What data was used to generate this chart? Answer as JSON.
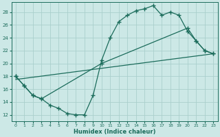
{
  "xlabel": "Humidex (Indice chaleur)",
  "xlim": [
    -0.5,
    23.5
  ],
  "ylim": [
    11,
    29.5
  ],
  "yticks": [
    12,
    14,
    16,
    18,
    20,
    22,
    24,
    26,
    28
  ],
  "xticks": [
    0,
    1,
    2,
    3,
    4,
    5,
    6,
    7,
    8,
    9,
    10,
    11,
    12,
    13,
    14,
    15,
    16,
    17,
    18,
    19,
    20,
    21,
    22,
    23
  ],
  "bg_color": "#cce8e6",
  "line_color": "#1a6b5a",
  "grid_color": "#aacfcc",
  "line1_x": [
    0,
    1,
    2,
    3,
    4,
    5,
    6,
    7,
    8,
    9,
    10,
    11,
    12,
    13,
    14,
    15,
    16,
    17,
    18,
    19,
    20,
    21,
    22,
    23
  ],
  "line1_y": [
    18.0,
    16.5,
    15.0,
    14.5,
    13.5,
    13.0,
    12.2,
    12.0,
    12.0,
    15.0,
    20.5,
    24.0,
    26.5,
    27.5,
    28.2,
    28.5,
    29.0,
    27.5,
    28.0,
    27.5,
    25.0,
    23.5,
    22.0,
    21.5
  ],
  "line2_x": [
    0,
    1,
    2,
    3,
    10,
    20,
    21,
    22,
    23
  ],
  "line2_y": [
    18.0,
    16.5,
    15.0,
    14.5,
    20.0,
    25.5,
    23.5,
    22.0,
    21.5
  ],
  "line3_x": [
    0,
    23
  ],
  "line3_y": [
    17.5,
    21.5
  ]
}
